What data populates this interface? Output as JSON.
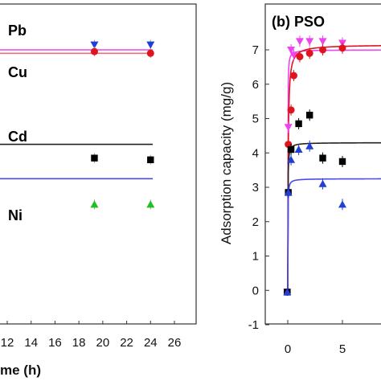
{
  "chart_data": [
    {
      "type": "scatter",
      "panel": "left",
      "title": "",
      "xlabel_visible": "me (h)",
      "ylabel": "",
      "xlim": [
        11,
        27
      ],
      "ylim": [
        -1,
        7.6
      ],
      "x_ticks": [
        "12",
        "14",
        "16",
        "18",
        "20",
        "22",
        "24",
        "26"
      ],
      "series": [
        {
          "name": "Pb",
          "color": "#1f3fd6",
          "marker": "triangle-down",
          "fit_color": "#ee44ee",
          "fit_y": 7.0,
          "x": [
            19.3,
            24.0
          ],
          "y": [
            7.15,
            7.15
          ]
        },
        {
          "name": "Cu",
          "color": "#e0141e",
          "marker": "circle",
          "fit_color": "#f07070",
          "fit_y": 6.9,
          "x": [
            19.3,
            24.0
          ],
          "y": [
            6.95,
            6.9
          ]
        },
        {
          "name": "Cd",
          "color": "#000000",
          "marker": "square",
          "fit_color": "#222222",
          "fit_y": 4.25,
          "x": [
            19.3,
            24.0
          ],
          "y": [
            3.85,
            3.8
          ]
        },
        {
          "name": "Ni",
          "color": "#20c020",
          "marker": "triangle-up",
          "fit_color": "#4a4af0",
          "fit_y": 3.25,
          "x": [
            19.3,
            24.0
          ],
          "y": [
            2.5,
            2.5
          ]
        }
      ]
    },
    {
      "type": "scatter",
      "panel": "right",
      "title": "(b) PSO",
      "xlabel": "",
      "ylabel": "Adsorption capacity (mg/g)",
      "xlim": [
        -1.5,
        9
      ],
      "ylim": [
        -1,
        7.6
      ],
      "x_ticks": [
        "0",
        "5"
      ],
      "y_ticks": [
        "-1",
        "0",
        "1",
        "2",
        "3",
        "4",
        "5",
        "6",
        "7"
      ],
      "series": [
        {
          "color": "#ee44ee",
          "marker": "triangle-down",
          "x": [
            -0.05,
            0.05,
            0.3,
            0.55,
            1.1,
            2.0,
            3.2,
            5.0
          ],
          "y": [
            -0.05,
            4.75,
            7.0,
            6.85,
            7.25,
            7.25,
            7.25,
            7.2
          ]
        },
        {
          "color": "#e0141e",
          "marker": "circle",
          "x": [
            -0.05,
            0.05,
            0.3,
            0.55,
            1.1,
            2.0,
            3.2,
            5.0
          ],
          "y": [
            -0.05,
            4.25,
            5.25,
            6.25,
            6.8,
            6.9,
            7.0,
            7.05
          ]
        },
        {
          "color": "#000000",
          "marker": "square",
          "x": [
            -0.05,
            0.05,
            0.3,
            1.0,
            2.0,
            3.2,
            5.0
          ],
          "y": [
            -0.05,
            2.85,
            4.1,
            4.85,
            5.1,
            3.85,
            3.75
          ]
        },
        {
          "color": "#1f3fd6",
          "marker": "triangle-up",
          "x": [
            -0.05,
            0.05,
            0.3,
            1.0,
            2.0,
            3.2,
            5.0
          ],
          "y": [
            -0.05,
            2.85,
            3.8,
            4.1,
            4.2,
            3.1,
            2.5
          ]
        }
      ],
      "fits": [
        {
          "color": "#ee44ee",
          "qe": 7.0,
          "k": 20
        },
        {
          "color": "#e0141e",
          "qe": 7.15,
          "k": 4
        },
        {
          "color": "#222222",
          "qe": 4.3,
          "k": 20
        },
        {
          "color": "#4a4af0",
          "qe": 3.25,
          "k": 30
        }
      ]
    }
  ]
}
